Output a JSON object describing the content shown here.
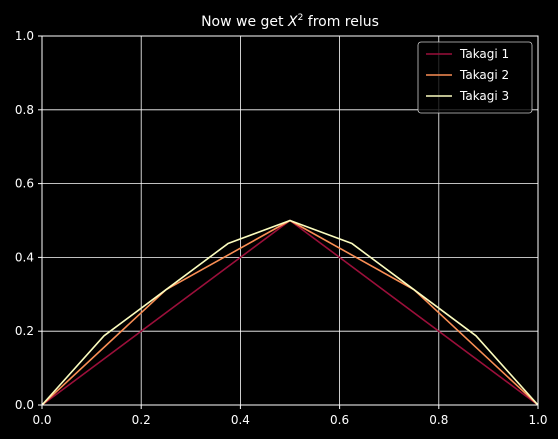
{
  "chart_data": {
    "type": "line",
    "title_prefix": "Now we get ",
    "title_var": "X",
    "title_sup": "2",
    "title_suffix": " from relus",
    "xlabel": "",
    "ylabel": "",
    "xlim": [
      0,
      1
    ],
    "ylim": [
      0,
      1
    ],
    "grid": true,
    "legend_position": "top-right",
    "xticks": [
      "0.0",
      "0.2",
      "0.4",
      "0.6",
      "0.8",
      "1.0"
    ],
    "yticks": [
      "0.0",
      "0.2",
      "0.4",
      "0.6",
      "0.8",
      "1.0"
    ],
    "series": [
      {
        "name": "Takagi 1",
        "color": "#9b0f3a",
        "x": [
          0,
          0.5,
          1
        ],
        "y": [
          0,
          0.5,
          0
        ]
      },
      {
        "name": "Takagi 2",
        "color": "#f98e54",
        "x": [
          0,
          0.25,
          0.5,
          0.75,
          1
        ],
        "y": [
          0,
          0.3125,
          0.5,
          0.3125,
          0
        ]
      },
      {
        "name": "Takagi 3",
        "color": "#fcfdbf",
        "x": [
          0,
          0.125,
          0.25,
          0.375,
          0.5,
          0.625,
          0.75,
          0.875,
          1
        ],
        "y": [
          0,
          0.1875,
          0.3125,
          0.4375,
          0.5,
          0.4375,
          0.3125,
          0.1875,
          0
        ]
      }
    ]
  }
}
